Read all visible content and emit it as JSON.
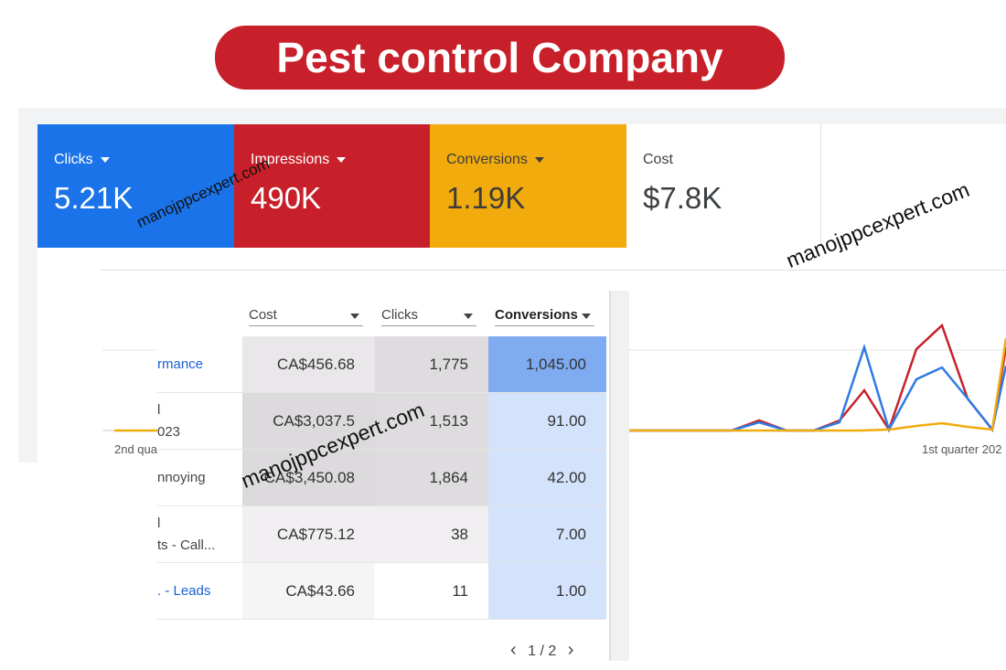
{
  "header": {
    "title": "Pest control Company"
  },
  "metrics": [
    {
      "label": "Clicks",
      "value": "5.21K"
    },
    {
      "label": "Impressions",
      "value": "490K"
    },
    {
      "label": "Conversions",
      "value": "1.19K"
    },
    {
      "label": "Cost",
      "value": "$7.8K"
    }
  ],
  "watermarks": [
    "manojppcexpert.com",
    "manojppcexpert.com",
    "manojppcexpert.com"
  ],
  "table": {
    "columns": [
      "Cost",
      "Clicks",
      "Conversions"
    ],
    "rows": [
      {
        "label": [
          "rmance"
        ],
        "cells": [
          "CA$456.68",
          "1,775",
          "1,045.00"
        ]
      },
      {
        "label": [
          "l",
          "023"
        ],
        "cells": [
          "CA$3,037.5",
          "1,513",
          "91.00"
        ]
      },
      {
        "label": [
          "nnoying"
        ],
        "cells": [
          "CA$3,450.08",
          "1,864",
          "42.00"
        ]
      },
      {
        "label": [
          "l",
          "ts - Call..."
        ],
        "cells": [
          "CA$775.12",
          "38",
          "7.00"
        ]
      },
      {
        "label": [
          ". - Leads"
        ],
        "cells": [
          "CA$43.66",
          "11",
          "1.00"
        ]
      }
    ]
  },
  "chart": {
    "x_labels": [
      "2nd qua",
      "1st quarter 202"
    ]
  },
  "pagination": "1 / 2"
}
